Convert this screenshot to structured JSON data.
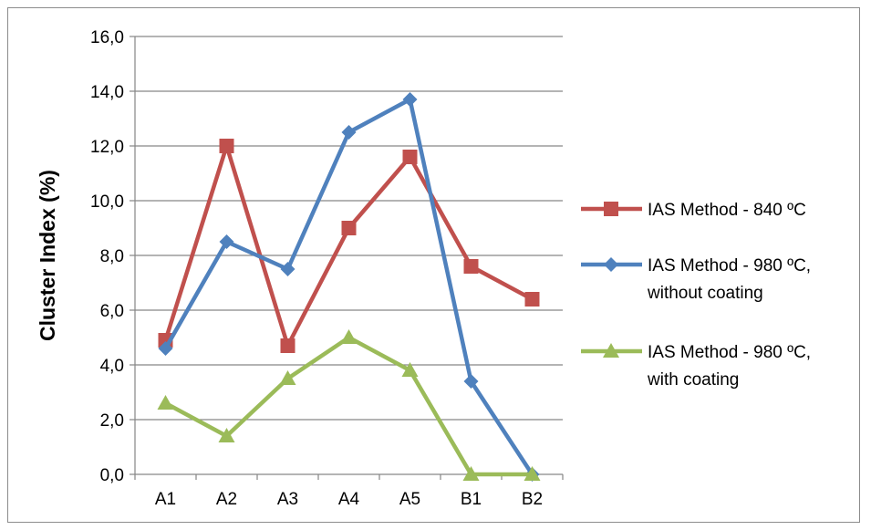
{
  "chart_data": {
    "type": "line",
    "title": "",
    "xlabel": "",
    "ylabel": "Cluster Index (%)",
    "categories": [
      "A1",
      "A2",
      "A3",
      "A4",
      "A5",
      "B1",
      "B2"
    ],
    "ylim": [
      0,
      16
    ],
    "yticks": [
      "0,0",
      "2,0",
      "4,0",
      "6,0",
      "8,0",
      "10,0",
      "12,0",
      "14,0",
      "16,0"
    ],
    "grid": true,
    "legend_position": "right",
    "series": [
      {
        "name": "IAS Method - 840 ºC",
        "legend_lines": [
          "IAS Method - 840 ºC"
        ],
        "color": "#c0504d",
        "marker": "square",
        "values": [
          4.9,
          12.0,
          4.7,
          9.0,
          11.6,
          7.6,
          6.4
        ]
      },
      {
        "name": "IAS Method - 980 ºC, without coating",
        "legend_lines": [
          "IAS Method - 980 ºC,",
          "without coating"
        ],
        "color": "#4f81bd",
        "marker": "diamond",
        "values": [
          4.6,
          8.5,
          7.5,
          12.5,
          13.7,
          3.4,
          0.0
        ]
      },
      {
        "name": "IAS Method - 980 ºC, with coating",
        "legend_lines": [
          "IAS Method - 980 ºC,",
          "with coating"
        ],
        "color": "#9bbb59",
        "marker": "triangle",
        "values": [
          2.6,
          1.4,
          3.5,
          5.0,
          3.8,
          0.0,
          0.0
        ]
      }
    ]
  }
}
